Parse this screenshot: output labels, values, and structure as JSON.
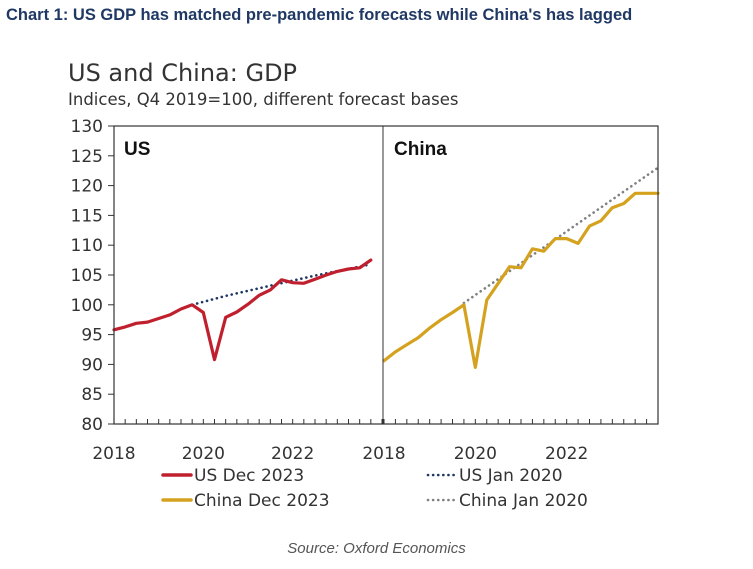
{
  "header": {
    "title": "Chart 1: US GDP has matched pre-pandemic forecasts while China's has lagged"
  },
  "source": "Source: Oxford Economics",
  "colors": {
    "us_actual": "#c0202e",
    "us_forecast": "#1f3864",
    "china_actual": "#d4a21e",
    "china_forecast": "#808080"
  },
  "chart_data": {
    "type": "line",
    "title": "US and China: GDP",
    "subtitle": "Indices, Q4 2019=100, different forecast bases",
    "ylim": [
      80,
      130
    ],
    "yticks": [
      80,
      85,
      90,
      95,
      100,
      105,
      110,
      115,
      120,
      125,
      130
    ],
    "x_range": [
      2018.0,
      2024.0
    ],
    "legend": [
      {
        "label": "US Dec 2023",
        "series": "us_actual"
      },
      {
        "label": "US Jan 2020",
        "series": "us_forecast"
      },
      {
        "label": "China Dec 2023",
        "series": "china_actual"
      },
      {
        "label": "China Jan 2020",
        "series": "china_forecast"
      }
    ],
    "panels": [
      {
        "label": "US",
        "xticks": [
          2018,
          2020,
          2022
        ],
        "series": [
          {
            "key": "us_forecast",
            "name": "US Jan 2020",
            "style": "dotted",
            "x": [
              2019.75,
              2020.5,
              2021.5,
              2022.5,
              2023.75
            ],
            "y": [
              100,
              101.5,
              103.2,
              104.9,
              106.8
            ]
          },
          {
            "key": "us_actual",
            "name": "US Dec 2023",
            "style": "solid",
            "x": [
              2018.0,
              2018.25,
              2018.5,
              2018.75,
              2019.0,
              2019.25,
              2019.5,
              2019.75,
              2020.0,
              2020.25,
              2020.5,
              2020.75,
              2021.0,
              2021.25,
              2021.5,
              2021.75,
              2022.0,
              2022.25,
              2022.5,
              2022.75,
              2023.0,
              2023.25,
              2023.5,
              2023.75
            ],
            "y": [
              95.8,
              96.3,
              96.9,
              97.1,
              97.7,
              98.3,
              99.3,
              100.0,
              98.7,
              90.8,
              97.9,
              98.8,
              100.1,
              101.6,
              102.5,
              104.2,
              103.7,
              103.6,
              104.3,
              105.0,
              105.6,
              106.0,
              106.2,
              107.5
            ]
          }
        ]
      },
      {
        "label": "China",
        "xticks": [
          2018,
          2020,
          2022
        ],
        "series": [
          {
            "key": "china_forecast",
            "name": "China Jan 2020",
            "style": "dotted",
            "x": [
              2019.75,
              2024.0
            ],
            "y": [
              100.3,
              123.0
            ]
          },
          {
            "key": "china_actual",
            "name": "China Dec 2023",
            "style": "solid",
            "x": [
              2018.0,
              2018.25,
              2018.5,
              2018.75,
              2019.0,
              2019.25,
              2019.5,
              2019.75,
              2020.0,
              2020.25,
              2020.5,
              2020.75,
              2021.0,
              2021.25,
              2021.5,
              2021.75,
              2022.0,
              2022.25,
              2022.5,
              2022.75,
              2023.0,
              2023.25,
              2023.5,
              2023.75,
              2024.0
            ],
            "y": [
              90.6,
              92.1,
              93.3,
              94.5,
              96.1,
              97.5,
              98.7,
              100.0,
              89.5,
              100.8,
              103.6,
              106.4,
              106.2,
              109.4,
              109.0,
              111.1,
              111.1,
              110.3,
              113.2,
              114.1,
              116.3,
              117.0,
              118.7,
              118.7,
              118.7
            ]
          }
        ]
      }
    ]
  }
}
